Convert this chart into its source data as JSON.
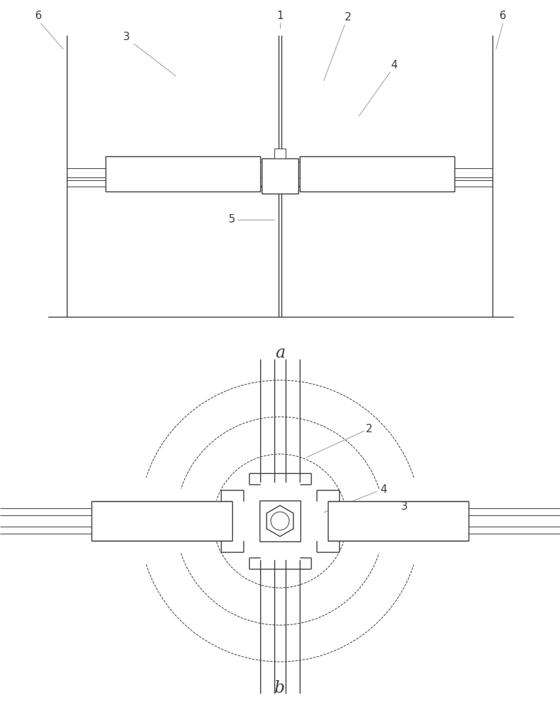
{
  "bg_color": "#ffffff",
  "line_color": "#3a3a3a",
  "line_color_light": "#999999",
  "fig_width": 7.96,
  "fig_height": 10.0,
  "dpi": 100
}
